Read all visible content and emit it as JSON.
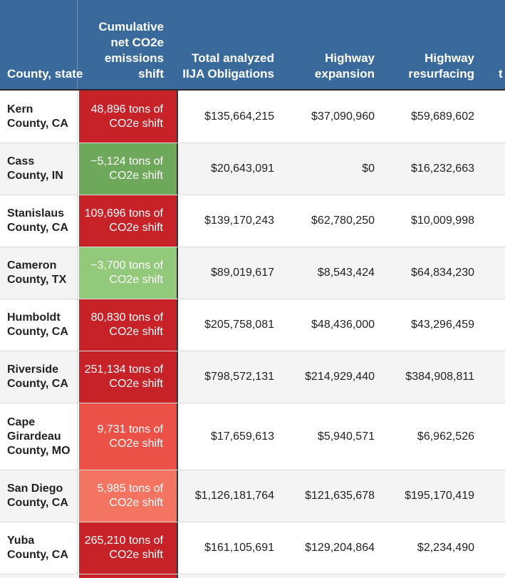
{
  "headers": {
    "county": "County, state",
    "emissions": "Cumulative net CO2e emissions shift",
    "total": "Total analyzed IIJA Obligations",
    "highway_expansion": "Highway expansion",
    "highway_resurfacing": "Highway resurfacing",
    "next_partial": "t"
  },
  "rows": [
    {
      "county": "Kern County, CA",
      "emissions": "48,896 tons of CO2e shift",
      "emissions_color": "#c62228",
      "total": "$135,664,215",
      "expansion": "$37,090,960",
      "resurfacing": "$59,689,602"
    },
    {
      "county": "Cass County, IN",
      "emissions": "−5,124 tons of CO2e shift",
      "emissions_color": "#6ea85b",
      "total": "$20,643,091",
      "expansion": "$0",
      "resurfacing": "$16,232,663"
    },
    {
      "county": "Stanislaus County, CA",
      "emissions": "109,696 tons of CO2e shift",
      "emissions_color": "#c62228",
      "total": "$139,170,243",
      "expansion": "$62,780,250",
      "resurfacing": "$10,009,998"
    },
    {
      "county": "Cameron County, TX",
      "emissions": "−3,700 tons of CO2e shift",
      "emissions_color": "#93c97a",
      "total": "$89,019,617",
      "expansion": "$8,543,424",
      "resurfacing": "$64,834,230"
    },
    {
      "county": "Humboldt County, CA",
      "emissions": "80,830 tons of CO2e shift",
      "emissions_color": "#c62228",
      "total": "$205,758,081",
      "expansion": "$48,436,000",
      "resurfacing": "$43,296,459"
    },
    {
      "county": "Riverside County, CA",
      "emissions": "251,134 tons of CO2e shift",
      "emissions_color": "#c62228",
      "total": "$798,572,131",
      "expansion": "$214,929,440",
      "resurfacing": "$384,908,811"
    },
    {
      "county": "Cape Girardeau County, MO",
      "emissions": "9,731 tons of CO2e shift",
      "emissions_color": "#ec5148",
      "total": "$17,659,613",
      "expansion": "$5,940,571",
      "resurfacing": "$6,962,526"
    },
    {
      "county": "San Diego County, CA",
      "emissions": "5,985 tons of CO2e shift",
      "emissions_color": "#f27461",
      "total": "$1,126,181,764",
      "expansion": "$121,635,678",
      "resurfacing": "$195,170,419"
    },
    {
      "county": "Yuba County, CA",
      "emissions": "265,210 tons of CO2e shift",
      "emissions_color": "#c62228",
      "total": "$161,105,691",
      "expansion": "$129,204,864",
      "resurfacing": "$2,234,490"
    }
  ]
}
